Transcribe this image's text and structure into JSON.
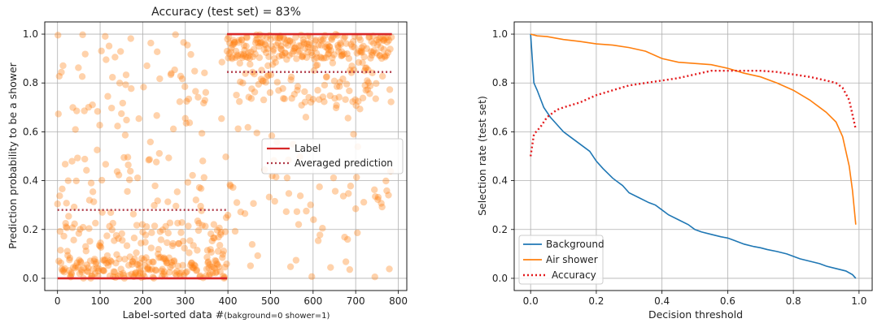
{
  "chart_data": [
    {
      "type": "scatter",
      "title": "Accuracy (test set) = 83%",
      "xlabel_main": "Label-sorted data #",
      "xlabel_note": "(bakground=0 shower=1)",
      "ylabel": "Prediction probability to be a shower",
      "xlim": [
        -30,
        820
      ],
      "ylim": [
        -0.05,
        1.05
      ],
      "xticks": [
        0,
        100,
        200,
        300,
        400,
        500,
        600,
        700,
        800
      ],
      "yticks": [
        0.0,
        0.2,
        0.4,
        0.6,
        0.8,
        1.0
      ],
      "grid": true,
      "legend_position": "center-right",
      "legend": [
        {
          "label": "Label",
          "style": "solid",
          "color": "#d62728"
        },
        {
          "label": "Averaged prediction",
          "style": "dotted",
          "color": "#b03a48"
        }
      ],
      "series": [
        {
          "name": "Label",
          "kind": "line",
          "color": "#d62728",
          "segments": [
            {
              "x": [
                0,
                398
              ],
              "y": [
                0.0,
                0.0
              ]
            },
            {
              "x": [
                398,
                785
              ],
              "y": [
                1.0,
                1.0
              ]
            }
          ]
        },
        {
          "name": "Averaged prediction",
          "kind": "dotted-line",
          "color": "#b03a48",
          "segments": [
            {
              "x": [
                0,
                398
              ],
              "y": [
                0.28,
                0.28
              ]
            },
            {
              "x": [
                398,
                785
              ],
              "y": [
                0.845,
                0.845
              ]
            }
          ]
        },
        {
          "name": "Predictions",
          "kind": "scatter",
          "color": "#ff7f0e",
          "groups": [
            {
              "x_range": [
                0,
                398
              ],
              "count": 398,
              "mean": 0.28
            },
            {
              "x_range": [
                398,
                785
              ],
              "count": 387,
              "mean": 0.845
            }
          ]
        }
      ]
    },
    {
      "type": "line",
      "xlabel": "Decision threshold",
      "ylabel": "Selection rate (test set)",
      "xlim": [
        -0.05,
        1.04
      ],
      "ylim": [
        -0.05,
        1.05
      ],
      "xticks": [
        0.0,
        0.2,
        0.4,
        0.6,
        0.8,
        1.0
      ],
      "yticks": [
        0.0,
        0.2,
        0.4,
        0.6,
        0.8,
        1.0
      ],
      "grid": true,
      "legend_position": "lower-left",
      "series": [
        {
          "name": "Background",
          "color": "#1f77b4",
          "style": "solid",
          "x": [
            0.0,
            0.01,
            0.02,
            0.04,
            0.06,
            0.08,
            0.1,
            0.12,
            0.15,
            0.18,
            0.2,
            0.22,
            0.25,
            0.28,
            0.3,
            0.33,
            0.36,
            0.38,
            0.4,
            0.42,
            0.45,
            0.48,
            0.5,
            0.52,
            0.55,
            0.58,
            0.6,
            0.62,
            0.65,
            0.68,
            0.7,
            0.72,
            0.75,
            0.78,
            0.8,
            0.82,
            0.85,
            0.88,
            0.9,
            0.93,
            0.96,
            0.98,
            0.99
          ],
          "y": [
            1.0,
            0.8,
            0.77,
            0.7,
            0.66,
            0.63,
            0.6,
            0.58,
            0.55,
            0.52,
            0.48,
            0.45,
            0.41,
            0.38,
            0.35,
            0.33,
            0.31,
            0.3,
            0.28,
            0.26,
            0.24,
            0.22,
            0.2,
            0.19,
            0.18,
            0.17,
            0.165,
            0.155,
            0.14,
            0.13,
            0.125,
            0.118,
            0.11,
            0.1,
            0.09,
            0.08,
            0.07,
            0.06,
            0.05,
            0.04,
            0.03,
            0.015,
            0.0
          ]
        },
        {
          "name": "Air shower",
          "color": "#ff7f0e",
          "style": "solid",
          "x": [
            0.0,
            0.02,
            0.05,
            0.1,
            0.15,
            0.2,
            0.25,
            0.3,
            0.35,
            0.4,
            0.45,
            0.5,
            0.55,
            0.6,
            0.65,
            0.7,
            0.75,
            0.8,
            0.85,
            0.88,
            0.9,
            0.93,
            0.95,
            0.97,
            0.98,
            0.99
          ],
          "y": [
            1.0,
            0.993,
            0.99,
            0.978,
            0.97,
            0.96,
            0.955,
            0.945,
            0.93,
            0.9,
            0.885,
            0.88,
            0.875,
            0.86,
            0.84,
            0.825,
            0.8,
            0.77,
            0.73,
            0.7,
            0.68,
            0.64,
            0.58,
            0.46,
            0.36,
            0.22
          ]
        },
        {
          "name": "Accuracy",
          "color": "#e31a1c",
          "style": "dotted",
          "x": [
            0.0,
            0.01,
            0.03,
            0.05,
            0.08,
            0.1,
            0.15,
            0.2,
            0.25,
            0.3,
            0.35,
            0.4,
            0.45,
            0.5,
            0.55,
            0.6,
            0.65,
            0.7,
            0.75,
            0.8,
            0.85,
            0.9,
            0.93,
            0.95,
            0.97,
            0.98,
            0.99
          ],
          "y": [
            0.5,
            0.59,
            0.62,
            0.66,
            0.69,
            0.7,
            0.72,
            0.75,
            0.77,
            0.79,
            0.8,
            0.81,
            0.82,
            0.835,
            0.85,
            0.85,
            0.85,
            0.85,
            0.845,
            0.835,
            0.825,
            0.81,
            0.8,
            0.78,
            0.73,
            0.67,
            0.61
          ]
        }
      ]
    }
  ]
}
